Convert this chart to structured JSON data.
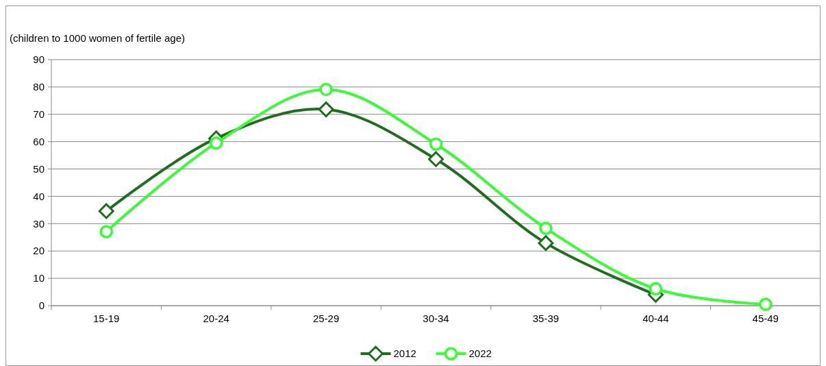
{
  "chart_data": {
    "type": "line",
    "ylabel": "(children to 1000 women of fertile age)",
    "categories": [
      "15-19",
      "20-24",
      "25-29",
      "30-34",
      "35-39",
      "40-44",
      "45-49"
    ],
    "series": [
      {
        "name": "2012",
        "color": "#1e6e1e",
        "marker": "diamond",
        "values": [
          34.6,
          61.2,
          71.8,
          53.6,
          22.9,
          4.0,
          null
        ]
      },
      {
        "name": "2022",
        "color": "#33ff33",
        "marker": "circle",
        "values": [
          27.1,
          59.5,
          79.1,
          59.1,
          28.3,
          6.2,
          0.5
        ]
      }
    ],
    "ylim": [
      0,
      90
    ],
    "yticks": [
      0,
      10,
      20,
      30,
      40,
      50,
      60,
      70,
      80,
      90
    ],
    "grid": "y",
    "legend": "bottom",
    "line_style": "solid"
  }
}
